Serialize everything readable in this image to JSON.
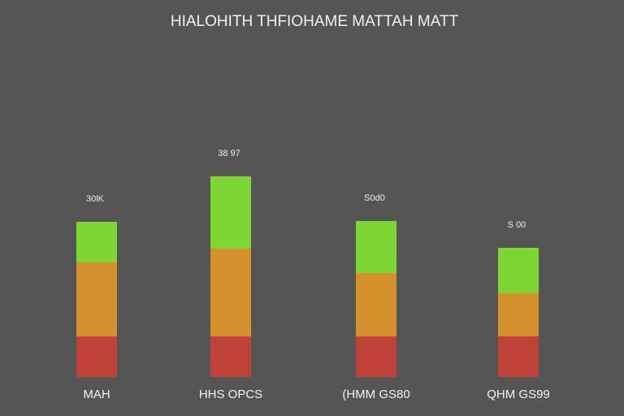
{
  "chart_data": {
    "type": "stacked-bar",
    "title": "HIALOHITH THFIOHAME MATTAH MATT",
    "categories": [
      "MAH",
      "HHS OPCS",
      "(HMM GS80",
      "QHM GS99"
    ],
    "bar_labels": [
      "30lK",
      "38 97",
      "S0d0",
      "S 00"
    ],
    "series": [
      {
        "color": "#c0403a",
        "values": [
          50,
          50,
          50,
          50
        ]
      },
      {
        "color": "#d4912e",
        "values": [
          91,
          108,
          78,
          53
        ]
      },
      {
        "color": "#7dd633",
        "values": [
          50,
          89,
          64,
          56
        ]
      }
    ],
    "ylim": [
      0,
      300
    ]
  }
}
